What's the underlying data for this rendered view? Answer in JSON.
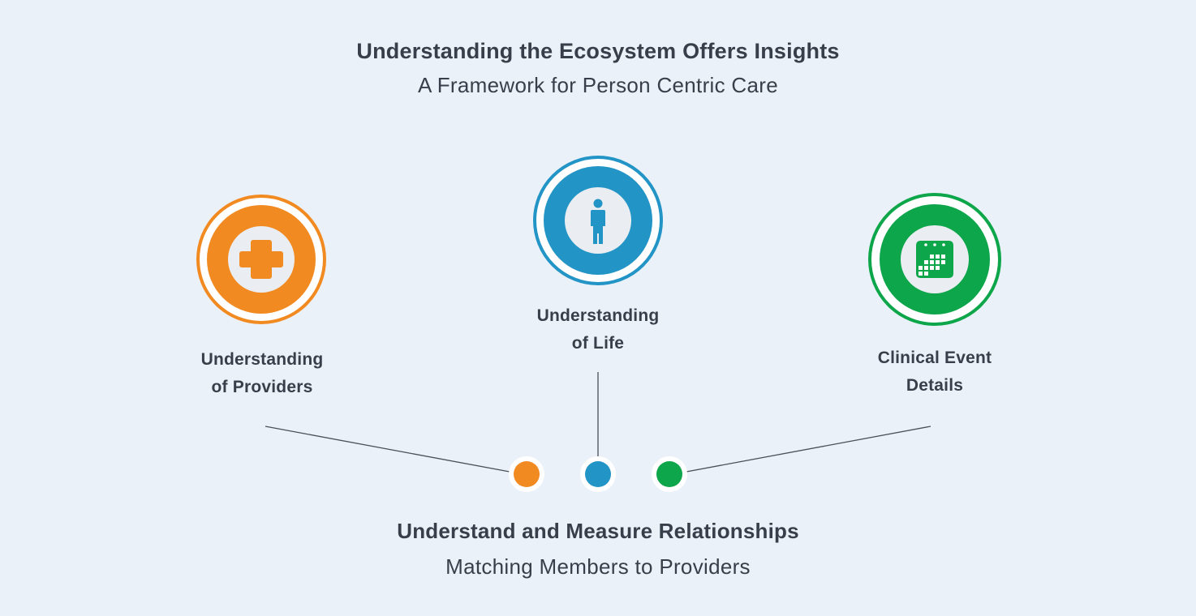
{
  "header": {
    "title": "Understanding the Ecosystem Offers Insights",
    "subtitle": "A Framework for Person Centric Care"
  },
  "nodes": [
    {
      "id": "providers",
      "label_line1": "Understanding",
      "label_line2": "of Providers",
      "icon": "medical-cross-icon",
      "color": "#f28a22"
    },
    {
      "id": "life",
      "label_line1": "Understanding",
      "label_line2": "of Life",
      "icon": "person-icon",
      "color": "#2294c6"
    },
    {
      "id": "clinical",
      "label_line1": "Clinical Event",
      "label_line2": "Details",
      "icon": "calendar-icon",
      "color": "#0ea64a"
    }
  ],
  "footer": {
    "title": "Understand and Measure Relationships",
    "subtitle": "Matching Members to Providers"
  },
  "colors": {
    "background": "#ebf1f9",
    "text": "#37404a",
    "connector": "#4a4f55"
  }
}
